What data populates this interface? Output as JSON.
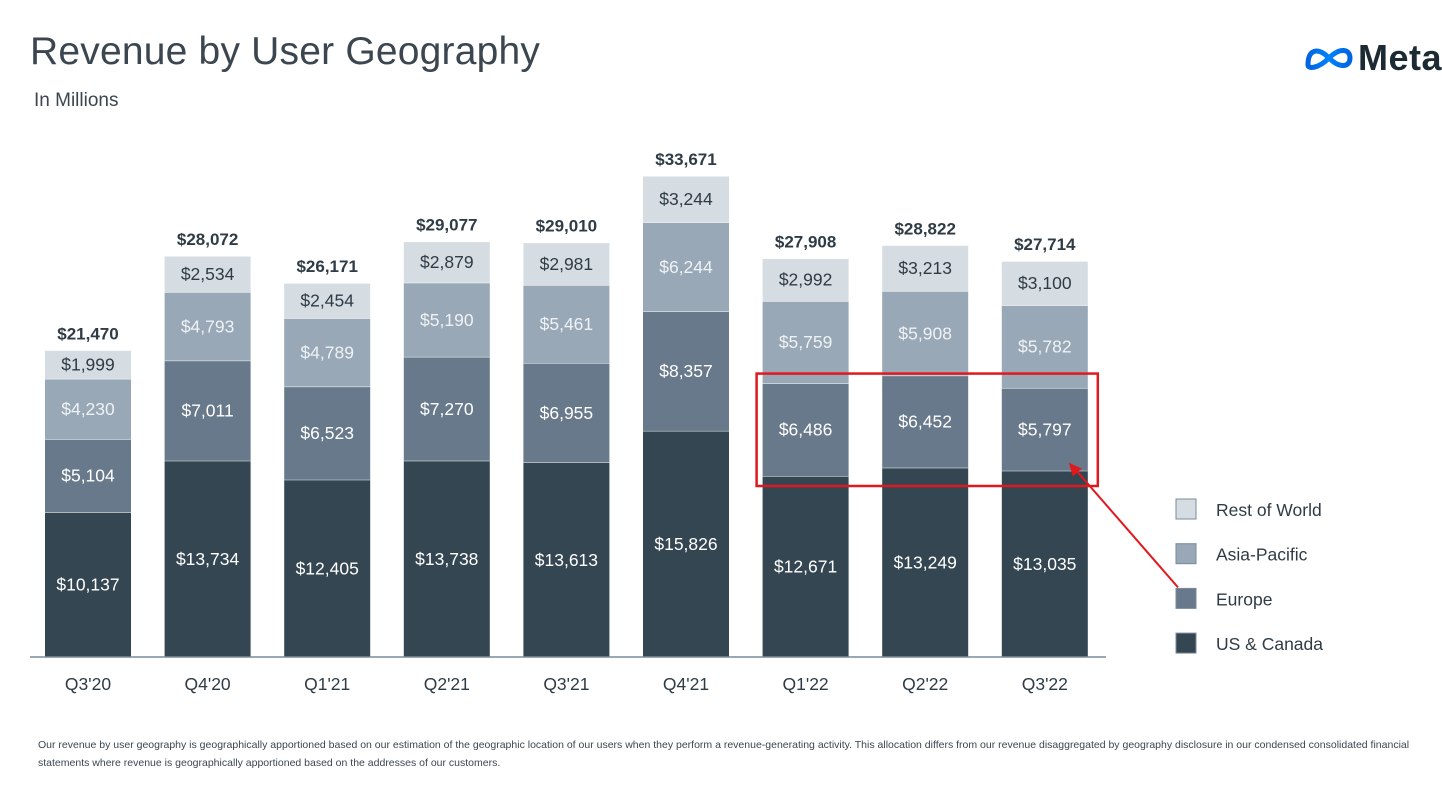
{
  "header": {
    "title": "Revenue by User Geography",
    "subtitle": "In Millions",
    "logo_text": "Meta"
  },
  "chart_data": {
    "type": "bar",
    "stacked": true,
    "title": "Revenue by User Geography",
    "subtitle": "In Millions",
    "categories": [
      "Q3'20",
      "Q4'20",
      "Q1'21",
      "Q2'21",
      "Q3'21",
      "Q4'21",
      "Q1'22",
      "Q2'22",
      "Q3'22"
    ],
    "series": [
      {
        "name": "US & Canada",
        "color": "#344652",
        "label_color": "#ffffff",
        "values": [
          10137,
          13734,
          12405,
          13738,
          13613,
          15826,
          12671,
          13249,
          13035
        ],
        "labels": [
          "$10,137",
          "$13,734",
          "$12,405",
          "$13,738",
          "$13,613",
          "$15,826",
          "$12,671",
          "$13,249",
          "$13,035"
        ]
      },
      {
        "name": "Europe",
        "color": "#67798a",
        "label_color": "#ffffff",
        "values": [
          5104,
          7011,
          6523,
          7270,
          6955,
          8357,
          6486,
          6452,
          5797
        ],
        "labels": [
          "$5,104",
          "$7,011",
          "$6,523",
          "$7,270",
          "$6,955",
          "$8,357",
          "$6,486",
          "$6,452",
          "$5,797"
        ]
      },
      {
        "name": "Asia-Pacific",
        "color": "#99a8b6",
        "label_color": "#eef2f5",
        "values": [
          4230,
          4793,
          4789,
          5190,
          5461,
          6244,
          5759,
          5908,
          5782
        ],
        "labels": [
          "$4,230",
          "$4,793",
          "$4,789",
          "$5,190",
          "$5,461",
          "$6,244",
          "$5,759",
          "$5,908",
          "$5,782"
        ]
      },
      {
        "name": "Rest of World",
        "color": "#d5dce2",
        "label_color": "#2f3b45",
        "values": [
          1999,
          2534,
          2454,
          2879,
          2981,
          3244,
          2992,
          3213,
          3100
        ],
        "labels": [
          "$1,999",
          "$2,534",
          "$2,454",
          "$2,879",
          "$2,981",
          "$3,244",
          "$2,992",
          "$3,213",
          "$3,100"
        ]
      }
    ],
    "totals": [
      21470,
      28072,
      26171,
      29077,
      29010,
      33671,
      27908,
      28822,
      27714
    ],
    "total_labels": [
      "$21,470",
      "$28,072",
      "$26,171",
      "$29,077",
      "$29,010",
      "$33,671",
      "$27,908",
      "$28,822",
      "$27,714"
    ],
    "legend": [
      "Rest of World",
      "Asia-Pacific",
      "Europe",
      "US & Canada"
    ],
    "legend_position": "right",
    "ylim": [
      0,
      35000
    ],
    "grid": false,
    "annotation": {
      "type": "highlight-box-with-arrow",
      "highlights_series": "Europe",
      "highlights_categories": [
        "Q1'22",
        "Q2'22",
        "Q3'22"
      ],
      "points_to_legend": "Europe",
      "color": "#e0191f"
    }
  },
  "footnote": "Our revenue by user geography is geographically apportioned based on our estimation of the geographic location of our users when they perform a revenue-generating activity. This allocation differs from our revenue disaggregated by geography disclosure in our condensed consolidated financial statements where revenue is geographically apportioned based on the addresses of our customers."
}
